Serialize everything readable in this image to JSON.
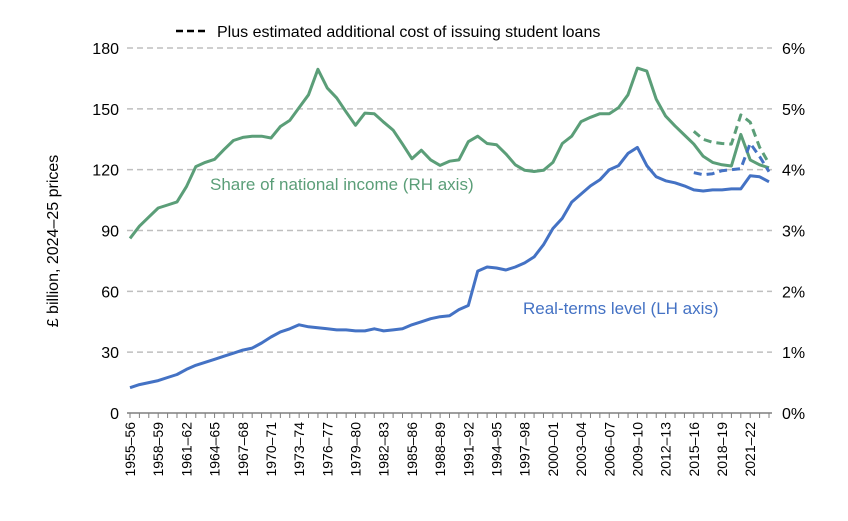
{
  "chart_data": {
    "type": "line",
    "legend": {
      "label": "Plus estimated additional cost of issuing student loans",
      "placement": "top"
    },
    "ylabel": "£ billion, 2024–25 prices",
    "ylim_left": [
      0,
      180
    ],
    "yticks_left": [
      "0",
      "30",
      "60",
      "90",
      "120",
      "150",
      "180"
    ],
    "ylim_right": [
      0,
      6
    ],
    "yticks_right": [
      "0%",
      "1%",
      "2%",
      "3%",
      "4%",
      "5%",
      "6%"
    ],
    "grid": true,
    "x_labels": [
      "1955–56",
      "1958–59",
      "1961–62",
      "1964–65",
      "1967–68",
      "1970–71",
      "1973–74",
      "1976–77",
      "1979–80",
      "1982–83",
      "1985–86",
      "1988–89",
      "1991–92",
      "1994–95",
      "1997–98",
      "2000–01",
      "2003–04",
      "2006–07",
      "2009–10",
      "2012–13",
      "2015–16",
      "2018–19",
      "2021–22"
    ],
    "years": [
      1955,
      1956,
      1957,
      1958,
      1959,
      1960,
      1961,
      1962,
      1963,
      1964,
      1965,
      1966,
      1967,
      1968,
      1969,
      1970,
      1971,
      1972,
      1973,
      1974,
      1975,
      1976,
      1977,
      1978,
      1979,
      1980,
      1981,
      1982,
      1983,
      1984,
      1985,
      1986,
      1987,
      1988,
      1989,
      1990,
      1991,
      1992,
      1993,
      1994,
      1995,
      1996,
      1997,
      1998,
      1999,
      2000,
      2001,
      2002,
      2003,
      2004,
      2005,
      2006,
      2007,
      2008,
      2009,
      2010,
      2011,
      2012,
      2013,
      2014,
      2015,
      2016,
      2017,
      2018,
      2019,
      2020,
      2021,
      2022,
      2023
    ],
    "series": [
      {
        "name": "Real-terms level (LH axis)",
        "axis": "left",
        "color": "#4472c4",
        "values": [
          12.5,
          14,
          15,
          16,
          17.5,
          19,
          21.5,
          23.5,
          25,
          26.5,
          28,
          29.5,
          31,
          32,
          34.5,
          37.5,
          40,
          41.5,
          43.5,
          42.5,
          42,
          41.5,
          41,
          41,
          40.5,
          40.5,
          41.5,
          40.5,
          41,
          41.5,
          43.5,
          45,
          46.5,
          47.5,
          48,
          51,
          53,
          70,
          72,
          71.5,
          70.5,
          72,
          74,
          77,
          83,
          91,
          96,
          104,
          108,
          112,
          115,
          120,
          122,
          128,
          131,
          122,
          116.5,
          114.5,
          113.5,
          112,
          110,
          109.5,
          110,
          110,
          110.5,
          110.5,
          117,
          116.5,
          114
        ]
      },
      {
        "name": "Share of national income (RH axis)",
        "axis": "right",
        "color": "#5b9e78",
        "values": [
          2.87,
          3.07,
          3.22,
          3.37,
          3.42,
          3.47,
          3.72,
          4.05,
          4.12,
          4.17,
          4.33,
          4.48,
          4.53,
          4.55,
          4.55,
          4.52,
          4.71,
          4.81,
          5.02,
          5.23,
          5.65,
          5.34,
          5.18,
          4.95,
          4.73,
          4.93,
          4.92,
          4.78,
          4.65,
          4.42,
          4.18,
          4.32,
          4.16,
          4.07,
          4.14,
          4.16,
          4.46,
          4.55,
          4.43,
          4.41,
          4.26,
          4.08,
          3.99,
          3.97,
          3.99,
          4.12,
          4.43,
          4.55,
          4.79,
          4.86,
          4.92,
          4.92,
          5.02,
          5.23,
          5.67,
          5.62,
          5.16,
          4.88,
          4.72,
          4.57,
          4.42,
          4.22,
          4.12,
          4.08,
          4.06,
          4.58,
          4.16,
          4.08,
          4.03
        ]
      },
      {
        "name": "Plus estimated additional cost of issuing student loans",
        "axis": "left",
        "color": "#4472c4",
        "dashed": true,
        "start_year": 2015,
        "values": [
          118.5,
          117.5,
          118,
          119.5,
          120,
          120.5,
          133,
          126.5,
          119
        ]
      },
      {
        "name": "Plus estimated additional cost of issuing student loans",
        "axis": "right",
        "color": "#5b9e78",
        "dashed": true,
        "start_year": 2015,
        "values": [
          4.63,
          4.5,
          4.45,
          4.43,
          4.42,
          4.9,
          4.78,
          4.37,
          4.1
        ]
      }
    ]
  },
  "annotations": {
    "green": "Share of national income (RH axis)",
    "blue": "Real-terms level (LH axis)"
  }
}
